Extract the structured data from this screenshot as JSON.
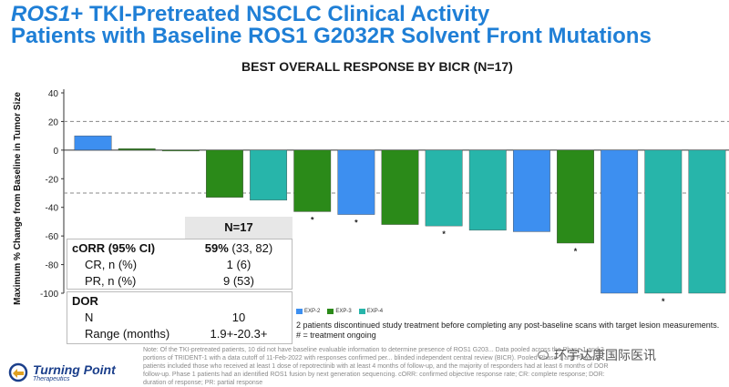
{
  "title": {
    "line1_italic": "ROS1",
    "line1_rest": "+ TKI-Pretreated NSCLC Clinical Activity",
    "line2": "Patients with Baseline ROS1 G2032R Solvent Front Mutations"
  },
  "colors": {
    "title": "#1f7fd6",
    "exp2": "#3d8ff0",
    "exp3": "#2b8a19",
    "exp4": "#27b5aa"
  },
  "chart_data": {
    "type": "bar",
    "title": "BEST OVERALL RESPONSE BY BICR (N=17)",
    "ylabel": "Maximum % Change from Baseline in Tumor Size",
    "xlabel": "",
    "ylim": [
      -100,
      40
    ],
    "yticks": [
      40,
      20,
      0,
      -20,
      -40,
      -60,
      -80,
      -100
    ],
    "reference_lines": [
      20,
      -30
    ],
    "series_legend": [
      "EXP-2",
      "EXP-3",
      "EXP-4"
    ],
    "bars": [
      {
        "value": 10,
        "cohort": "EXP-2",
        "ongoing": false
      },
      {
        "value": 1,
        "cohort": "EXP-3",
        "ongoing": false
      },
      {
        "value": 0,
        "cohort": "EXP-3",
        "ongoing": false
      },
      {
        "value": -33,
        "cohort": "EXP-3",
        "ongoing": false
      },
      {
        "value": -35,
        "cohort": "EXP-4",
        "ongoing": false
      },
      {
        "value": -43,
        "cohort": "EXP-3",
        "ongoing": true
      },
      {
        "value": -45,
        "cohort": "EXP-2",
        "ongoing": true
      },
      {
        "value": -52,
        "cohort": "EXP-3",
        "ongoing": false
      },
      {
        "value": -53,
        "cohort": "EXP-4",
        "ongoing": true
      },
      {
        "value": -56,
        "cohort": "EXP-4",
        "ongoing": false
      },
      {
        "value": -57,
        "cohort": "EXP-2",
        "ongoing": false
      },
      {
        "value": -65,
        "cohort": "EXP-3",
        "ongoing": true
      },
      {
        "value": -100,
        "cohort": "EXP-2",
        "ongoing": false
      },
      {
        "value": -100,
        "cohort": "EXP-4",
        "ongoing": true
      },
      {
        "value": -100,
        "cohort": "EXP-4",
        "ongoing": false
      }
    ]
  },
  "table": {
    "header": "N=17",
    "corr_label": "cORR (95% CI)",
    "corr_value_bold": "59%",
    "corr_value_rest": " (33, 82)",
    "cr_label": "CR, n (%)",
    "cr_value": "1 (6)",
    "pr_label": "PR, n (%)",
    "pr_value": "9 (53)",
    "dor_label": "DOR",
    "n_label": "N",
    "n_value": "10",
    "range_label": "Range (months)",
    "range_value": "1.9+-20.3+"
  },
  "footnote": {
    "line1": "2 patients discontinued study treatment before completing any post-baseline scans with target lesion measurements.",
    "line2": "# = treatment ongoing"
  },
  "bottom_note": "Note: Of the TKI-pretreated patients, 10 did not have baseline evaluable information to determine presence of ROS1 G203... Data pooled across the Phase 1 and 2 portions of TRIDENT-1 with a data cutoff of 11-Feb-2022 with responses confirmed per... blinded independent central review (BICR). Pooled Phase 1 and Phase 2 patients included those who received at least 1 dose of repotrectinib with at least 4 months of follow-up, and the majority of responders had at least 6 months of DOR follow-up. Phase 1 patients had an identified ROS1 fusion by next generation sequencing. cORR: confirmed objective response rate; CR: complete response; DOR: duration of response; PR: partial response",
  "logo": {
    "brand": "Turning Point",
    "sub": "Therapeutics"
  },
  "watermark": "环宇达康国际医讯"
}
